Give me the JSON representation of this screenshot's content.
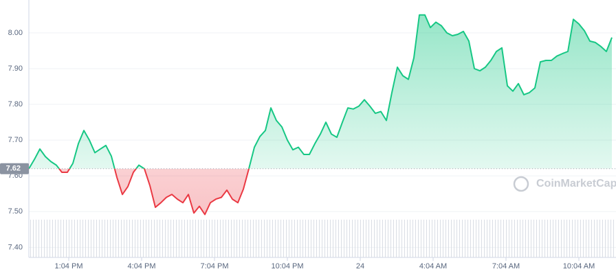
{
  "chart_data": {
    "type": "line",
    "watermark": "CoinMarketCap",
    "baseline": 7.62,
    "up_color": "#16c784",
    "down_color": "#ea3943",
    "grid": true,
    "xlim": [
      0,
      106
    ],
    "ylim": [
      7.37,
      8.09
    ],
    "yticks": [
      {
        "value": 7.4,
        "label": "7.40"
      },
      {
        "value": 7.5,
        "label": "7.50"
      },
      {
        "value": 7.6,
        "label": "7.60"
      },
      {
        "value": 7.7,
        "label": "7.70"
      },
      {
        "value": 7.8,
        "label": "7.80"
      },
      {
        "value": 7.9,
        "label": "7.90"
      },
      {
        "value": 8.0,
        "label": "8.00"
      }
    ],
    "xticks": [
      {
        "value": 7.25,
        "label": "1:04 PM"
      },
      {
        "value": 20.5,
        "label": "4:04 PM"
      },
      {
        "value": 33.75,
        "label": "7:04 PM"
      },
      {
        "value": 47,
        "label": "10:04 PM"
      },
      {
        "value": 60.25,
        "label": "24"
      },
      {
        "value": 73.5,
        "label": "4:04 AM"
      },
      {
        "value": 86.75,
        "label": "7:04 AM"
      },
      {
        "value": 100,
        "label": "10:04 AM"
      }
    ],
    "x": [
      0,
      1,
      2,
      3,
      4,
      5,
      6,
      7,
      8,
      9,
      10,
      11,
      12,
      13,
      14,
      15,
      16,
      17,
      18,
      19,
      20,
      21,
      22,
      23,
      24,
      25,
      26,
      27,
      28,
      29,
      30,
      31,
      32,
      33,
      34,
      35,
      36,
      37,
      38,
      39,
      40,
      41,
      42,
      43,
      44,
      45,
      46,
      47,
      48,
      49,
      50,
      51,
      52,
      53,
      54,
      55,
      56,
      57,
      58,
      59,
      60,
      61,
      62,
      63,
      64,
      65,
      66,
      67,
      68,
      69,
      70,
      71,
      72,
      73,
      74,
      75,
      76,
      77,
      78,
      79,
      80,
      81,
      82,
      83,
      84,
      85,
      86,
      87,
      88,
      89,
      90,
      91,
      92,
      93,
      94,
      95,
      96,
      97,
      98,
      99,
      100,
      101,
      102,
      103,
      104,
      105,
      106
    ],
    "values": [
      7.62,
      7.646,
      7.675,
      7.654,
      7.64,
      7.63,
      7.61,
      7.61,
      7.635,
      7.69,
      7.727,
      7.7,
      7.665,
      7.675,
      7.685,
      7.655,
      7.596,
      7.548,
      7.57,
      7.61,
      7.63,
      7.62,
      7.573,
      7.512,
      7.525,
      7.54,
      7.548,
      7.535,
      7.525,
      7.548,
      7.496,
      7.515,
      7.492,
      7.525,
      7.535,
      7.54,
      7.56,
      7.535,
      7.525,
      7.563,
      7.62,
      7.68,
      7.71,
      7.727,
      7.79,
      7.755,
      7.737,
      7.7,
      7.673,
      7.68,
      7.66,
      7.66,
      7.69,
      7.717,
      7.75,
      7.717,
      7.708,
      7.75,
      7.79,
      7.787,
      7.795,
      7.813,
      7.795,
      7.775,
      7.78,
      7.755,
      7.833,
      7.904,
      7.88,
      7.87,
      7.93,
      8.05,
      8.05,
      8.015,
      8.03,
      8.02,
      8.0,
      7.992,
      7.996,
      8.004,
      7.977,
      7.9,
      7.894,
      7.904,
      7.923,
      7.948,
      7.958,
      7.852,
      7.837,
      7.858,
      7.827,
      7.833,
      7.846,
      7.919,
      7.923,
      7.923,
      7.935,
      7.942,
      7.948,
      8.038,
      8.025,
      8.006,
      7.977,
      7.973,
      7.962,
      7.948,
      7.987
    ]
  }
}
